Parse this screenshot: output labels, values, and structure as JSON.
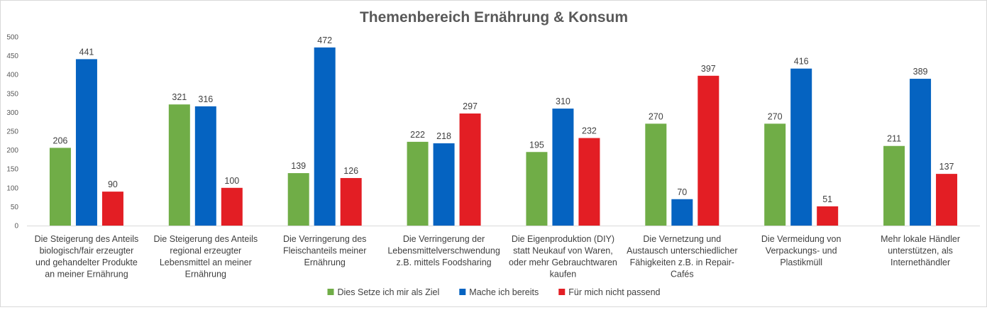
{
  "chart_data": {
    "type": "bar",
    "title": "Themenbereich Ernährung & Konsum",
    "xlabel": "",
    "ylabel": "",
    "ylim": [
      0,
      500
    ],
    "yticks": [
      0,
      50,
      100,
      150,
      200,
      250,
      300,
      350,
      400,
      450,
      500
    ],
    "grid": false,
    "legend_position": "bottom",
    "categories": [
      [
        "Die Steigerung des Anteils",
        "biologisch/fair erzeugter",
        "und gehandelter Produkte",
        "an meiner Ernährung"
      ],
      [
        "Die Steigerung des Anteils",
        "regional erzeugter",
        "Lebensmittel an meiner",
        "Ernährung"
      ],
      [
        "Die Verringerung des",
        "Fleischanteils meiner",
        "Ernährung"
      ],
      [
        "Die Verringerung der",
        "Lebensmittelverschwendung",
        "z.B. mittels Foodsharing"
      ],
      [
        "Die Eigenproduktion (DIY)",
        "statt Neukauf von Waren,",
        "oder mehr Gebrauchtwaren",
        "kaufen"
      ],
      [
        "Die Vernetzung und",
        "Austausch unterschiedlicher",
        "Fähigkeiten z.B. in Repair-",
        "Cafés"
      ],
      [
        "Die Vermeidung von",
        "Verpackungs- und",
        "Plastikmüll"
      ],
      [
        "Mehr lokale Händler",
        "unterstützen, als",
        "Internethändler"
      ]
    ],
    "series": [
      {
        "name": "Dies Setze ich mir als Ziel",
        "color": "#70ad47",
        "values": [
          206,
          321,
          139,
          222,
          195,
          270,
          270,
          211
        ]
      },
      {
        "name": "Mache ich bereits",
        "color": "#0563c1",
        "values": [
          441,
          316,
          472,
          218,
          310,
          70,
          416,
          389
        ]
      },
      {
        "name": "Für mich nicht passend",
        "color": "#e31e24",
        "values": [
          90,
          100,
          126,
          297,
          232,
          397,
          51,
          137
        ]
      }
    ]
  }
}
